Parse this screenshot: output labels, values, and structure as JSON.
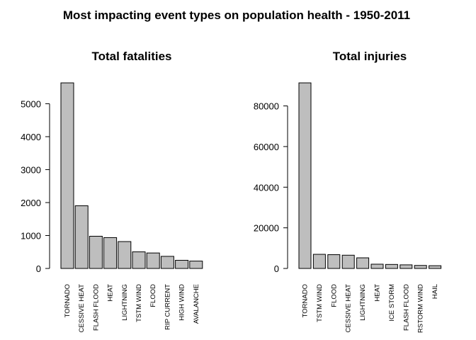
{
  "figure": {
    "title": "Most impacting event types on population health - 1950-2011"
  },
  "chart_data": [
    {
      "type": "bar",
      "title": "Total fatalities",
      "xlabel": "",
      "ylabel": "",
      "ylim": [
        0,
        5633
      ],
      "yticks": [
        0,
        1000,
        2000,
        3000,
        4000,
        5000
      ],
      "categories": [
        "TORNADO",
        "CESSIVE HEAT",
        "FLASH FLOOD",
        "HEAT",
        "LIGHTNING",
        "TSTM WIND",
        "FLOOD",
        "RIP CURRENT",
        "HIGH WIND",
        "AVALANCHE"
      ],
      "values": [
        5633,
        1903,
        978,
        937,
        816,
        504,
        470,
        368,
        248,
        224
      ],
      "bar_color": "#bebebe",
      "grid": false
    },
    {
      "type": "bar",
      "title": "Total injuries",
      "xlabel": "",
      "ylabel": "",
      "ylim": [
        0,
        91346
      ],
      "yticks": [
        0,
        20000,
        40000,
        60000,
        80000
      ],
      "categories": [
        "TORNADO",
        "TSTM WIND",
        "FLOOD",
        "CESSIVE HEAT",
        "LIGHTNING",
        "HEAT",
        "ICE STORM",
        "FLASH FLOOD",
        "RSTORM WIND",
        "HAIL"
      ],
      "values": [
        91346,
        6957,
        6789,
        6525,
        5230,
        2100,
        1975,
        1777,
        1488,
        1361
      ],
      "bar_color": "#bebebe",
      "grid": false
    }
  ]
}
